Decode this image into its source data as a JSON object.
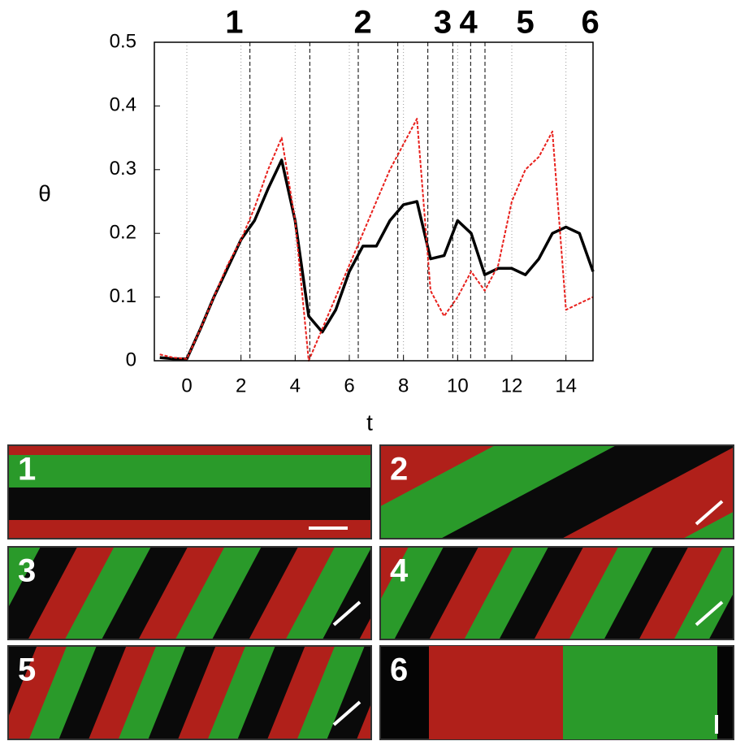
{
  "chart_data": {
    "type": "line",
    "x_label": "t",
    "y_label": "θ",
    "xlim": [
      -1.2,
      15
    ],
    "ylim": [
      0,
      0.5
    ],
    "xticks": [
      0,
      2,
      4,
      6,
      8,
      10,
      12,
      14
    ],
    "yticks": [
      0,
      0.1,
      0.2,
      0.3,
      0.4,
      0.5
    ],
    "grid": "x",
    "x": [
      -1,
      -0.5,
      0,
      0.5,
      1,
      1.5,
      2,
      2.5,
      3,
      3.5,
      4,
      4.5,
      5,
      5.5,
      6,
      6.5,
      7,
      7.5,
      8,
      8.5,
      9,
      9.5,
      10,
      10.5,
      11,
      11.5,
      12,
      12.5,
      13,
      13.5,
      14,
      14.5,
      15
    ],
    "series": [
      {
        "color": "#000000",
        "dash": false,
        "values": [
          0.005,
          0.003,
          0.003,
          0.05,
          0.1,
          0.145,
          0.19,
          0.22,
          0.27,
          0.315,
          0.22,
          0.07,
          0.045,
          0.08,
          0.14,
          0.18,
          0.18,
          0.22,
          0.245,
          0.25,
          0.16,
          0.165,
          0.22,
          0.2,
          0.135,
          0.145,
          0.145,
          0.135,
          0.16,
          0.2,
          0.21,
          0.2,
          0.14
        ]
      },
      {
        "color": "#e8201c",
        "dash": true,
        "values": [
          0.01,
          0.005,
          0.003,
          0.05,
          0.1,
          0.15,
          0.19,
          0.24,
          0.3,
          0.35,
          0.22,
          0.0,
          0.05,
          0.1,
          0.15,
          0.2,
          0.25,
          0.3,
          0.34,
          0.38,
          0.11,
          0.07,
          0.1,
          0.14,
          0.11,
          0.15,
          0.25,
          0.3,
          0.32,
          0.36,
          0.08,
          0.09,
          0.1
        ]
      }
    ],
    "event_lines": [
      2.33,
      4.54,
      6.33,
      7.79,
      8.9,
      9.82,
      10.48,
      11.01
    ],
    "annotations": [
      {
        "text": "1",
        "x": 1.75
      },
      {
        "text": "2",
        "x": 6.5
      },
      {
        "text": "3",
        "x": 9.45
      },
      {
        "text": "4",
        "x": 10.4
      },
      {
        "text": "5",
        "x": 12.5
      },
      {
        "text": "6",
        "x": 14.9
      }
    ]
  },
  "panels": [
    {
      "label": "1"
    },
    {
      "label": "2"
    },
    {
      "label": "3"
    },
    {
      "label": "4"
    },
    {
      "label": "5"
    },
    {
      "label": "6"
    }
  ]
}
